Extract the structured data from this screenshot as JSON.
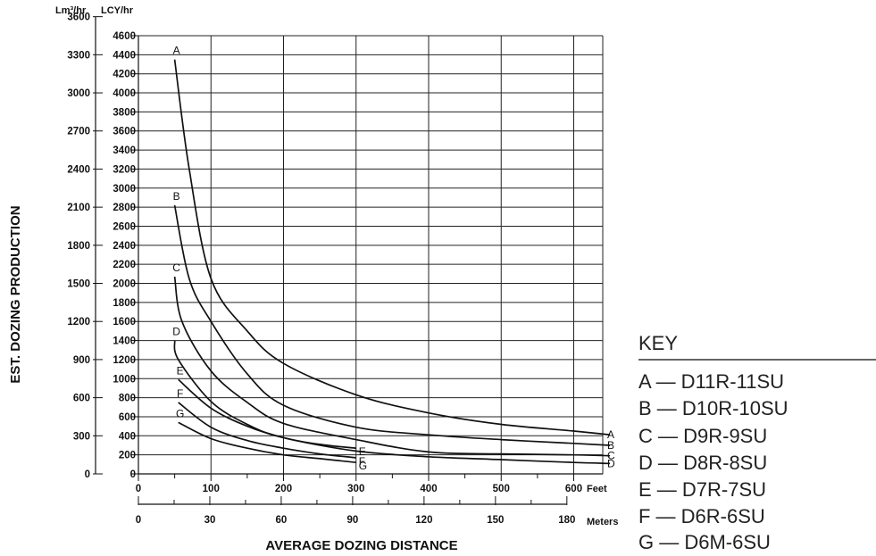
{
  "chart_data": {
    "type": "line",
    "title": "",
    "ylabel": "EST. DOZING PRODUCTION",
    "xlabel": "AVERAGE DOZING DISTANCE",
    "y_units": {
      "metric": "Lm³/hr",
      "imperial": "LCY/hr"
    },
    "x_units": {
      "imperial": "Feet",
      "metric": "Meters"
    },
    "xlim": [
      0,
      640
    ],
    "ylim": [
      0,
      4600
    ],
    "x_ticks_feet": [
      0,
      100,
      200,
      300,
      400,
      500,
      600
    ],
    "x_ticks_meters": [
      0,
      30,
      60,
      90,
      120,
      150,
      180
    ],
    "y_ticks_lcy": [
      0,
      200,
      400,
      600,
      800,
      1000,
      1200,
      1400,
      1600,
      1800,
      2000,
      2200,
      2400,
      2600,
      2800,
      3000,
      3200,
      3400,
      3600,
      3800,
      4000,
      4200,
      4400,
      4600
    ],
    "y_ticks_m3": [
      0,
      300,
      600,
      900,
      1200,
      1500,
      1800,
      2100,
      2400,
      2700,
      3000,
      3300,
      3600
    ],
    "grid": true,
    "legend_position": "right",
    "series": [
      {
        "label": "A",
        "x": [
          50,
          70,
          100,
          150,
          200,
          300,
          400,
          500,
          600,
          650
        ],
        "y": [
          4350,
          3200,
          2050,
          1500,
          1160,
          830,
          640,
          520,
          450,
          410
        ]
      },
      {
        "label": "B",
        "x": [
          50,
          70,
          100,
          150,
          200,
          300,
          400,
          500,
          600,
          650
        ],
        "y": [
          2820,
          2050,
          1600,
          1050,
          720,
          490,
          410,
          360,
          320,
          300
        ]
      },
      {
        "label": "C",
        "x": [
          50,
          60,
          100,
          150,
          200,
          300,
          400,
          500,
          600,
          650
        ],
        "y": [
          2070,
          1600,
          1080,
          750,
          530,
          360,
          230,
          210,
          200,
          190
        ]
      },
      {
        "label": "D",
        "x": [
          50,
          55,
          100,
          150,
          200,
          300,
          400,
          500,
          600,
          650
        ],
        "y": [
          1400,
          1200,
          760,
          520,
          380,
          240,
          180,
          150,
          120,
          110
        ]
      },
      {
        "label": "E",
        "x": [
          55,
          100,
          150,
          200,
          250,
          300
        ],
        "y": [
          990,
          690,
          500,
          380,
          310,
          270
        ]
      },
      {
        "label": "F",
        "x": [
          55,
          100,
          150,
          200,
          250,
          300
        ],
        "y": [
          750,
          490,
          350,
          270,
          210,
          170
        ]
      },
      {
        "label": "G",
        "x": [
          55,
          100,
          150,
          200,
          250,
          300
        ],
        "y": [
          540,
          370,
          270,
          200,
          160,
          120
        ]
      }
    ]
  },
  "key": {
    "title": "KEY",
    "items": [
      {
        "letter": "A",
        "model": "A — D11R-11SU"
      },
      {
        "letter": "B",
        "model": "B — D10R-10SU"
      },
      {
        "letter": "C",
        "model": "C — D9R-9SU"
      },
      {
        "letter": "D",
        "model": "D — D8R-8SU"
      },
      {
        "letter": "E",
        "model": "E — D7R-7SU"
      },
      {
        "letter": "F",
        "model": "F — D6R-6SU"
      },
      {
        "letter": "G",
        "model": "G — D6M-6SU"
      }
    ]
  }
}
